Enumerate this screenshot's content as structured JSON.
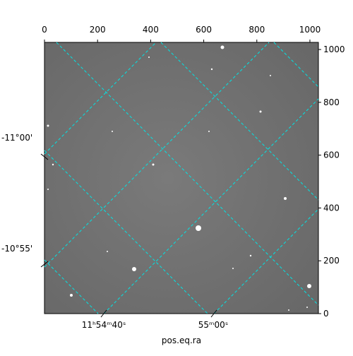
{
  "chart_data": {
    "type": "image",
    "xlabel": "pos.eq.ra",
    "xlim": [
      0,
      1032
    ],
    "xticks": [
      0,
      200,
      400,
      600,
      800,
      1000
    ],
    "ylim": [
      0,
      1027
    ],
    "yticks": [
      0,
      200,
      400,
      600,
      800,
      1000
    ],
    "world_yticklabels": [
      "-11°00'",
      "-10°55'"
    ],
    "world_xticklabels": [
      "11ʰ54ᵐ40ˢ",
      "55ᵐ00ˢ"
    ]
  }
}
